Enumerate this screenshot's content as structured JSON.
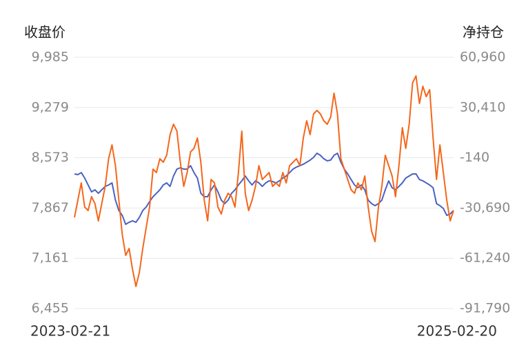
{
  "chart_data": {
    "type": "line",
    "ylabel": "收盘价",
    "y2label": "净持仓",
    "ylim": [
      6455,
      9985
    ],
    "yticks": [
      {
        "value": 6455,
        "label": "6,455"
      },
      {
        "value": 7161,
        "label": "7,161"
      },
      {
        "value": 7867,
        "label": "7,867"
      },
      {
        "value": 8573,
        "label": "8,573"
      },
      {
        "value": 9279,
        "label": "9,279"
      },
      {
        "value": 9985,
        "label": "9,985"
      }
    ],
    "y2lim": [
      -91790,
      60960
    ],
    "y2ticks": [
      {
        "value": -91790,
        "label": "-91,790"
      },
      {
        "value": -61240,
        "label": "-61,240"
      },
      {
        "value": -30690,
        "label": "-30,690"
      },
      -140,
      {
        "value": 30410,
        "label": "30,410"
      },
      {
        "value": 60960,
        "label": "60,960"
      }
    ],
    "grid": true,
    "categories": [
      "2023-02-21",
      null,
      null,
      null,
      null,
      null,
      null,
      null,
      null,
      null,
      null,
      null,
      null,
      null,
      null,
      null,
      null,
      null,
      null,
      null,
      null,
      null,
      null,
      null,
      null,
      null,
      null,
      null,
      null,
      null,
      null,
      null,
      null,
      null,
      null,
      null,
      null,
      null,
      null,
      null,
      null,
      null,
      null,
      null,
      null,
      null,
      null,
      null,
      null,
      null,
      null,
      null,
      null,
      null,
      null,
      null,
      null,
      null,
      null,
      null,
      null,
      null,
      null,
      null,
      null,
      null,
      null,
      null,
      null,
      null,
      null,
      null,
      null,
      null,
      null,
      null,
      null,
      null,
      null,
      null,
      null,
      null,
      null,
      null,
      null,
      null,
      null,
      null,
      null,
      null,
      null,
      null,
      null,
      null,
      null,
      null,
      null,
      null,
      null,
      null,
      null,
      null,
      null,
      null,
      null,
      null,
      null,
      null,
      null,
      null,
      null,
      "2025-02-20"
    ],
    "series": [
      {
        "color": "#4a62c2",
        "axis": "y",
        "values": [
          8346,
          8336,
          8365,
          8288,
          8191,
          8094,
          8123,
          8074,
          8123,
          8171,
          8191,
          8220,
          7978,
          7832,
          7764,
          7638,
          7667,
          7687,
          7667,
          7735,
          7832,
          7881,
          7958,
          8026,
          8074,
          8123,
          8191,
          8220,
          8171,
          8317,
          8414,
          8433,
          8414,
          8414,
          8462,
          8365,
          8288,
          8074,
          8026,
          8026,
          8123,
          8191,
          8094,
          7978,
          7929,
          7978,
          8074,
          8123,
          8191,
          8249,
          8317,
          8249,
          8191,
          8249,
          8220,
          8171,
          8220,
          8249,
          8239,
          8220,
          8249,
          8288,
          8317,
          8365,
          8414,
          8443,
          8462,
          8482,
          8511,
          8540,
          8579,
          8637,
          8608,
          8559,
          8530,
          8540,
          8608,
          8637,
          8511,
          8414,
          8346,
          8268,
          8191,
          8152,
          8191,
          8123,
          7978,
          7929,
          7900,
          7929,
          7978,
          8123,
          8249,
          8152,
          8123,
          8171,
          8220,
          8288,
          8317,
          8346,
          8346,
          8268,
          8249,
          8220,
          8191,
          8152,
          7929,
          7900,
          7861,
          7764,
          7784,
          7832
        ]
      },
      {
        "color": "#f5661a",
        "axis": "y2",
        "values": [
          -36396,
          -25905,
          -15414,
          -30102,
          -32200,
          -23807,
          -28004,
          -38495,
          -28004,
          -17513,
          -727,
          7666,
          -4923,
          -25905,
          -46887,
          -59477,
          -55280,
          -67869,
          -78360,
          -69968,
          -55280,
          -42691,
          -30102,
          -7022,
          -9120,
          -727,
          -2825,
          1371,
          13960,
          20255,
          16059,
          -2825,
          -17513,
          -9120,
          3469,
          5568,
          11862,
          -2825,
          -25905,
          -38495,
          -13316,
          -15414,
          -30102,
          -34298,
          -25905,
          -21709,
          -23807,
          -30102,
          -9120,
          16059,
          -21709,
          -32200,
          -25905,
          -17513,
          -4923,
          -13316,
          -11218,
          -9120,
          -17513,
          -15414,
          -17513,
          -9120,
          -15414,
          -4923,
          -2825,
          -727,
          -4923,
          11862,
          22353,
          13960,
          26550,
          28648,
          26550,
          22353,
          20255,
          24451,
          39139,
          26550,
          -727,
          -7022,
          -13316,
          -19611,
          -21709,
          -15414,
          -19611,
          -11218,
          -30102,
          -44789,
          -51084,
          -30102,
          -17513,
          1371,
          -4923,
          -11218,
          -23807,
          -4923,
          18157,
          5568,
          20255,
          45433,
          49630,
          32844,
          43335,
          37041,
          41237,
          11862,
          -13316,
          7666,
          -9120,
          -25905,
          -38495,
          -32200
        ]
      }
    ]
  }
}
